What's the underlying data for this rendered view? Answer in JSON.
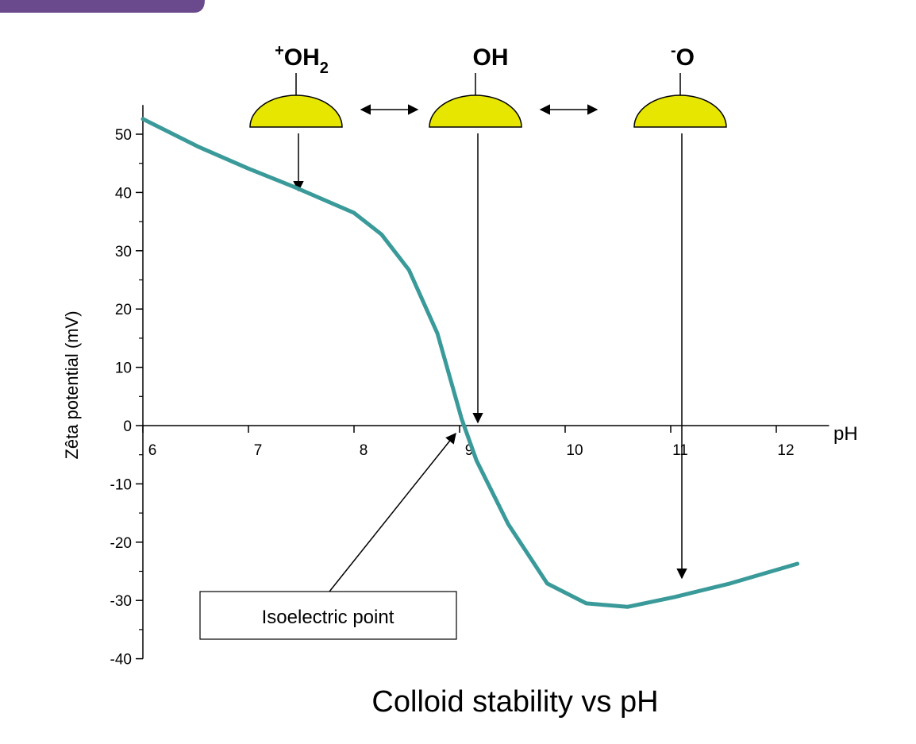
{
  "chart_data": {
    "type": "line",
    "title": "Colloid stability vs pH",
    "x_label": "pH",
    "y_label": "Zêta potential (mV)",
    "xlim": [
      6,
      12.5
    ],
    "xticks": [
      6,
      7,
      8,
      9,
      10,
      11,
      12
    ],
    "ylim": [
      -40,
      55
    ],
    "yticks": [
      -40,
      -30,
      -20,
      -10,
      0,
      10,
      20,
      30,
      40,
      50
    ],
    "series": [
      {
        "name": "Zêta potential",
        "color": "#3a9a9a",
        "x": [
          6,
          6.53,
          7,
          7.44,
          8,
          8.26,
          8.52,
          8.79,
          9.02,
          9.16,
          9.46,
          9.83,
          10.2,
          10.59,
          11.04,
          11.56,
          12.2
        ],
        "values": [
          52.6,
          47.8,
          44.1,
          40.9,
          36.5,
          32.8,
          26.7,
          15.8,
          1.1,
          -6,
          -16.9,
          -27.1,
          -30.5,
          -31.1,
          -29.4,
          -27.1,
          -23.7
        ]
      }
    ],
    "surface_groups": [
      {
        "charge": "+",
        "formula": "OH",
        "subscript": "2"
      },
      {
        "formula": "OH"
      },
      {
        "charge": "-",
        "formula": "O"
      }
    ],
    "annotation": "Isoelectric point"
  }
}
